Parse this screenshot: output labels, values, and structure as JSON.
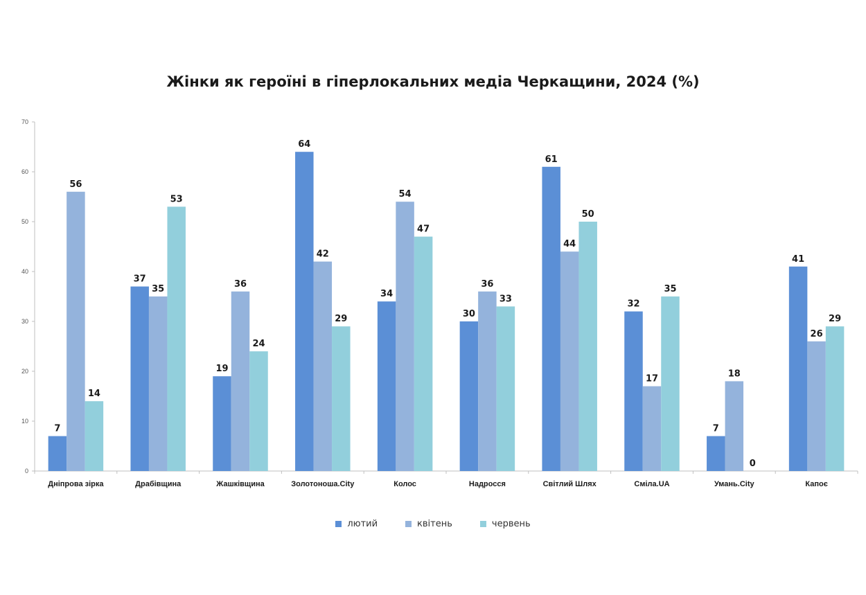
{
  "chart_data": {
    "type": "bar",
    "title": "Жінки як героїні в гіперлокальних медіа Черкащини, 2024 (%)",
    "categories": [
      "Дніпрова зірка",
      "Драбівщина",
      "Жашківщина",
      "Золотоноша.City",
      "Колос",
      "Надросся",
      "Світлий Шлях",
      "Сміла.UA",
      "Умань.City",
      "Капоє"
    ],
    "series": [
      {
        "name": "лютий",
        "color": "#5b8fd6",
        "values": [
          7,
          37,
          19,
          64,
          34,
          30,
          61,
          32,
          7,
          41
        ]
      },
      {
        "name": "квітень",
        "color": "#94b3dc",
        "values": [
          56,
          35,
          36,
          42,
          54,
          36,
          44,
          17,
          18,
          26
        ]
      },
      {
        "name": "червень",
        "color": "#92cfdc",
        "values": [
          14,
          53,
          24,
          29,
          47,
          33,
          50,
          35,
          0,
          29
        ]
      }
    ],
    "ylim": [
      0,
      70
    ],
    "yticks": [
      0,
      10,
      20,
      30,
      40,
      50,
      60,
      70
    ],
    "grid": false,
    "legend": "bottom"
  }
}
